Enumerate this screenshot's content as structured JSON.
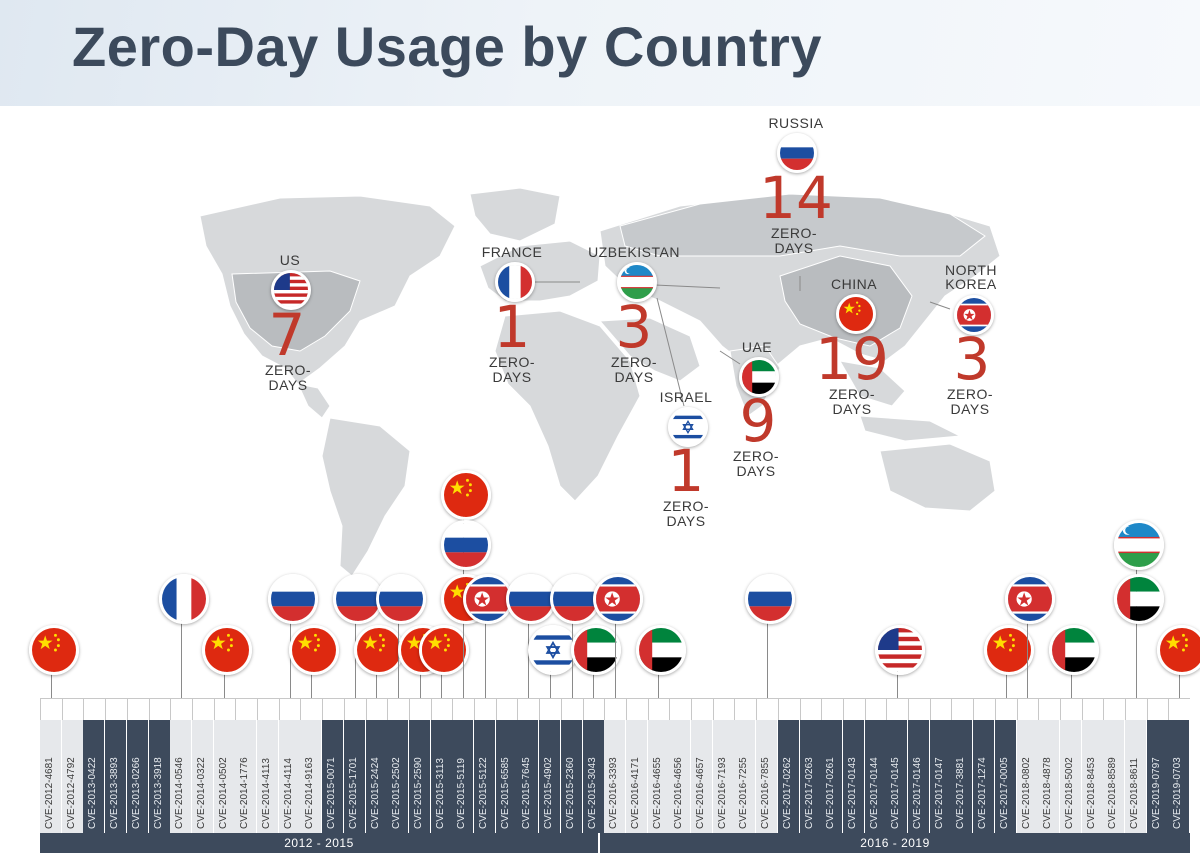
{
  "title": "Zero-Day Usage by Country",
  "zero_days_label": "ZERO-\nDAYS",
  "countries": [
    {
      "name": "RUSSIA",
      "count": "14",
      "flag": "russia"
    },
    {
      "name": "US",
      "count": "7",
      "flag": "us"
    },
    {
      "name": "FRANCE",
      "count": "1",
      "flag": "france"
    },
    {
      "name": "UZBEKISTAN",
      "count": "3",
      "flag": "uzbekistan"
    },
    {
      "name": "CHINA",
      "count": "19",
      "flag": "china"
    },
    {
      "name": "NORTH\nKOREA",
      "count": "3",
      "flag": "north-korea"
    },
    {
      "name": "UAE",
      "count": "9",
      "flag": "uae"
    },
    {
      "name": "ISRAEL",
      "count": "1",
      "flag": "israel"
    }
  ],
  "colors": {
    "accent_red": "#c0392b",
    "timeline_dark": "#3d4a5c",
    "timeline_light": "#e6e8eb",
    "map_gray": "#d7d9db"
  },
  "cves": [
    {
      "id": "CVE-2012-4681",
      "dark": false,
      "flag": "china"
    },
    {
      "id": "CVE-2012-4792",
      "dark": false,
      "flag": null
    },
    {
      "id": "CVE-2013-0422",
      "dark": true,
      "flag": null
    },
    {
      "id": "CVE-2013-3893",
      "dark": true,
      "flag": null
    },
    {
      "id": "CVE-2013-0266",
      "dark": true,
      "flag": null
    },
    {
      "id": "CVE-2013-3918",
      "dark": true,
      "flag": null
    },
    {
      "id": "CVE-2014-0546",
      "dark": false,
      "flag": "france"
    },
    {
      "id": "CVE-2014-0322",
      "dark": false,
      "flag": null
    },
    {
      "id": "CVE-2014-0502",
      "dark": false,
      "flag": "china"
    },
    {
      "id": "CVE-2014-1776",
      "dark": false,
      "flag": null
    },
    {
      "id": "CVE-2014-4113",
      "dark": false,
      "flag": null
    },
    {
      "id": "CVE-2014-4114",
      "dark": false,
      "flag": "russia"
    },
    {
      "id": "CVE-2014-9163",
      "dark": false,
      "flag": "china"
    },
    {
      "id": "CVE-2015-0071",
      "dark": true,
      "flag": null
    },
    {
      "id": "CVE-2015-1701",
      "dark": true,
      "flag": "russia"
    },
    {
      "id": "CVE-2015-2424",
      "dark": true,
      "flag": "china"
    },
    {
      "id": "CVE-2015-2502",
      "dark": true,
      "flag": "russia"
    },
    {
      "id": "CVE-2015-2590",
      "dark": true,
      "flag": "china"
    },
    {
      "id": "CVE-2015-3113",
      "dark": true,
      "flag": "china"
    },
    {
      "id": "CVE-2015-5119",
      "dark": true,
      "flag": "china"
    },
    {
      "id": "CVE-2015-5122",
      "dark": true,
      "flag": "north-korea"
    },
    {
      "id": "CVE-2015-6585",
      "dark": true,
      "flag": null
    },
    {
      "id": "CVE-2015-7645",
      "dark": true,
      "flag": "russia"
    },
    {
      "id": "CVE-2015-4902",
      "dark": true,
      "flag": "israel"
    },
    {
      "id": "CVE-2015-2360",
      "dark": true,
      "flag": "russia"
    },
    {
      "id": "CVE-2015-3043",
      "dark": true,
      "flag": "uae"
    },
    {
      "id": "CVE-2016-3393",
      "dark": false,
      "flag": "north-korea"
    },
    {
      "id": "CVE-2016-4171",
      "dark": false,
      "flag": null
    },
    {
      "id": "CVE-2016-4655",
      "dark": false,
      "flag": "uae"
    },
    {
      "id": "CVE-2016-4656",
      "dark": false,
      "flag": null
    },
    {
      "id": "CVE-2016-4657",
      "dark": false,
      "flag": null
    },
    {
      "id": "CVE-2016-7193",
      "dark": false,
      "flag": null
    },
    {
      "id": "CVE-2016-7255",
      "dark": false,
      "flag": null
    },
    {
      "id": "CVE-2016-7855",
      "dark": false,
      "flag": "russia"
    },
    {
      "id": "CVE-2017-0262",
      "dark": true,
      "flag": null
    },
    {
      "id": "CVE-2017-0263",
      "dark": true,
      "flag": null
    },
    {
      "id": "CVE-2017-0261",
      "dark": true,
      "flag": null
    },
    {
      "id": "CVE-2017-0143",
      "dark": true,
      "flag": null
    },
    {
      "id": "CVE-2017-0144",
      "dark": true,
      "flag": null
    },
    {
      "id": "CVE-2017-0145",
      "dark": true,
      "flag": "us"
    },
    {
      "id": "CVE-2017-0146",
      "dark": true,
      "flag": null
    },
    {
      "id": "CVE-2017-0147",
      "dark": true,
      "flag": null
    },
    {
      "id": "CVE-2017-3881",
      "dark": true,
      "flag": null
    },
    {
      "id": "CVE-2017-1274",
      "dark": true,
      "flag": null
    },
    {
      "id": "CVE-2017-0005",
      "dark": true,
      "flag": "china"
    },
    {
      "id": "CVE-2018-0802",
      "dark": false,
      "flag": "north-korea"
    },
    {
      "id": "CVE-2018-4878",
      "dark": false,
      "flag": null
    },
    {
      "id": "CVE-2018-5002",
      "dark": false,
      "flag": "uae"
    },
    {
      "id": "CVE-2018-8453",
      "dark": false,
      "flag": null
    },
    {
      "id": "CVE-2018-8589",
      "dark": false,
      "flag": null
    },
    {
      "id": "CVE-2018-8611",
      "dark": false,
      "flag": "uzbekistan"
    },
    {
      "id": "CVE-2019-0797",
      "dark": true,
      "flag": null
    },
    {
      "id": "CVE-2019-0703",
      "dark": true,
      "flag": "china"
    }
  ],
  "periods": [
    {
      "label": "2012 - 2015"
    },
    {
      "label": "2016 - 2019"
    }
  ]
}
